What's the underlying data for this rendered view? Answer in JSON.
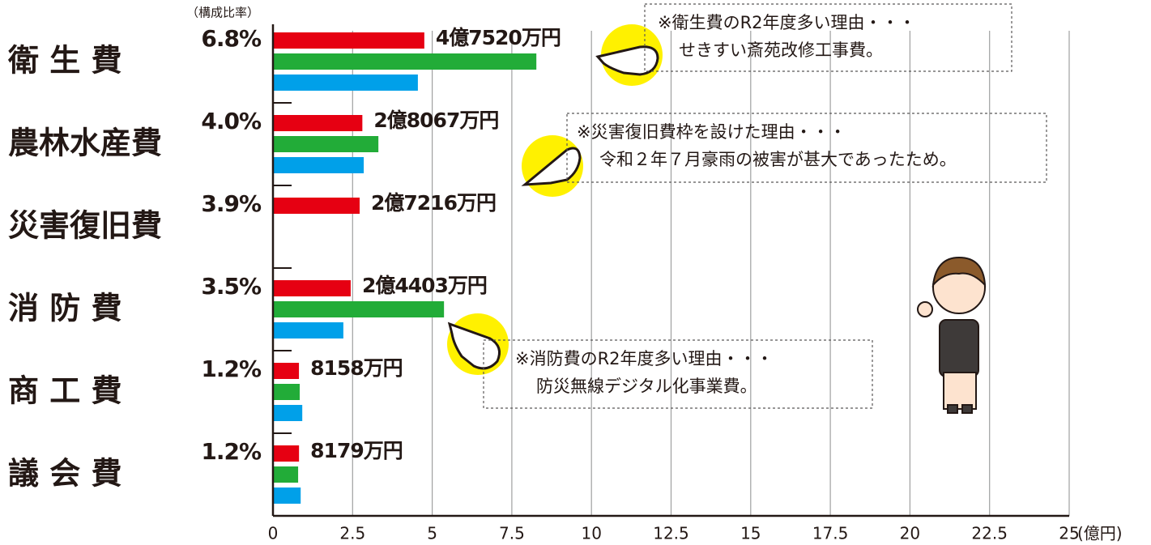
{
  "chart_data": {
    "type": "bar",
    "orientation": "horizontal",
    "categories": [
      "衛 生 費",
      "農林水産費",
      "災害復旧費",
      "消 防 費",
      "商 工 費",
      "議 会 費"
    ],
    "share_header": "（構成比率）",
    "share_labels": [
      "6.8%",
      "4.0%",
      "3.9%",
      "3.5%",
      "1.2%",
      "1.2%"
    ],
    "series": [
      {
        "color": "#e60012",
        "values": [
          4.752,
          2.8067,
          2.7216,
          2.4403,
          0.8158,
          0.8179
        ],
        "value_labels": [
          "4億7520万円",
          "2億8067万円",
          "2億7216万円",
          "2億4403万円",
          "8158万円",
          "8179万円"
        ]
      },
      {
        "color": "#22ac38",
        "values": [
          8.27,
          3.31,
          null,
          5.37,
          0.84,
          0.79
        ]
      },
      {
        "color": "#00a0e9",
        "values": [
          4.55,
          2.85,
          null,
          2.21,
          0.92,
          0.87
        ]
      }
    ],
    "xlim": [
      0,
      25
    ],
    "xticks": [
      0,
      2.5,
      5,
      7.5,
      10,
      12.5,
      15,
      17.5,
      20,
      22.5,
      25
    ],
    "x_unit": "(億円)",
    "grid": true,
    "annotations": [
      {
        "lines": [
          "※衛生費のR2年度多い理由・・・",
          "せきすい斎苑改修工事費。"
        ]
      },
      {
        "lines": [
          "※災害復旧費枠を設けた理由・・・",
          "令和２年７月豪雨の被害が甚大であったため。"
        ]
      },
      {
        "lines": [
          "※消防費のR2年度多い理由・・・",
          "防災無線デジタル化事業費。"
        ]
      }
    ]
  }
}
